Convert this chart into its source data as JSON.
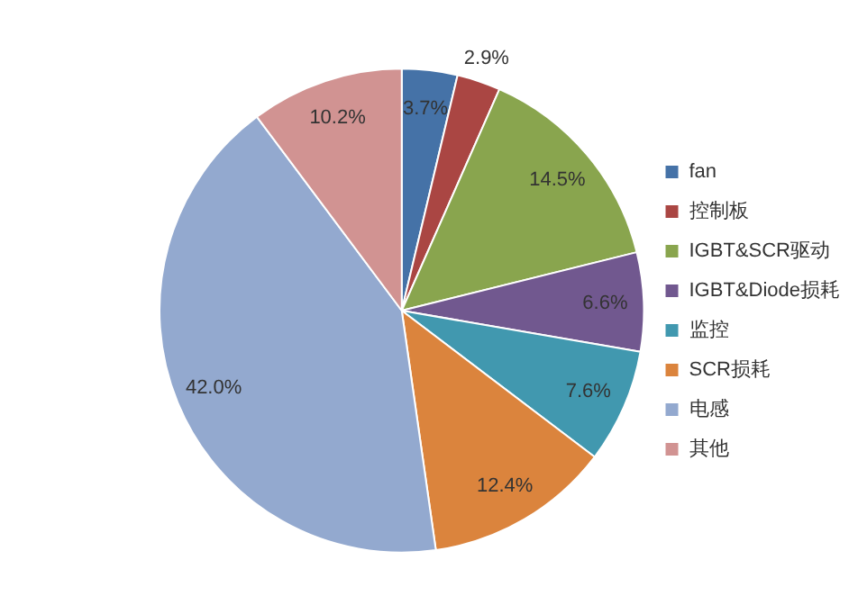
{
  "chart_data": {
    "type": "pie",
    "categories": [
      "fan",
      "控制板",
      "IGBT&SCR驱动",
      "IGBT&Diode损耗",
      "监控",
      "SCR损耗",
      "电感",
      "其他"
    ],
    "values": [
      3.7,
      2.9,
      14.5,
      6.6,
      7.6,
      12.4,
      42.0,
      10.2
    ],
    "colors": [
      "#4572a7",
      "#aa4643",
      "#89a54e",
      "#71588f",
      "#4198af",
      "#db843d",
      "#93a9cf",
      "#d19392"
    ],
    "value_labels": [
      "3.7%",
      "2.9%",
      "14.5%",
      "6.6%",
      "7.6%",
      "12.4%",
      "42.0%",
      "10.2%"
    ],
    "legend": "right"
  }
}
